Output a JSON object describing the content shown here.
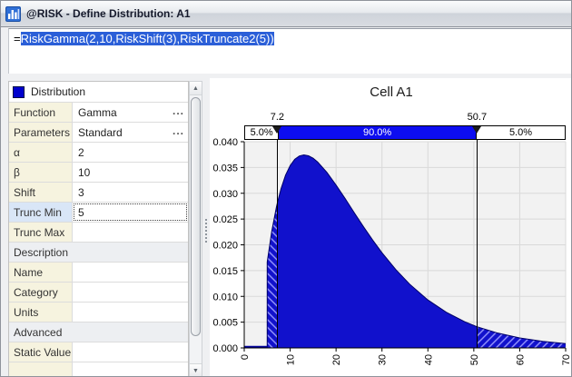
{
  "window": {
    "title": "@RISK - Define Distribution: A1"
  },
  "icons": {
    "window_icon": "bar-chart-icon",
    "distribution_swatch": "blue-color-swatch",
    "ellipsis_button": "ellipsis-icon",
    "scroll_up": "chevron-up-icon",
    "scroll_down": "chevron-down-icon"
  },
  "formula_bar": {
    "prefix": "=",
    "selected_text": "RiskGamma(2,10,RiskShift(3),RiskTruncate2(5))"
  },
  "properties": {
    "header_label": "Distribution",
    "rows": [
      {
        "label": "Function",
        "value": "Gamma",
        "ellipsis": "..."
      },
      {
        "label": "Parameters",
        "value": "Standard",
        "ellipsis": "..."
      },
      {
        "label": "α",
        "value": "2"
      },
      {
        "label": "β",
        "value": "10"
      },
      {
        "label": "Shift",
        "value": "3"
      },
      {
        "label": "Trunc Min",
        "value": "5"
      },
      {
        "label": "Trunc Max",
        "value": ""
      },
      {
        "label": "Description"
      },
      {
        "label": "Name",
        "value": ""
      },
      {
        "label": "Category",
        "value": ""
      },
      {
        "label": "Units",
        "value": ""
      },
      {
        "label": "Advanced"
      },
      {
        "label": "Static Value",
        "value": ""
      }
    ]
  },
  "scrollbar": {
    "up_glyph": "▲",
    "down_glyph": "▼"
  },
  "chart_data": {
    "type": "area",
    "title": "Cell A1",
    "distribution": {
      "function": "Gamma",
      "alpha": 2,
      "beta": 10,
      "shift": 3,
      "trunc_min": 5
    },
    "delimiters": {
      "left_x": 7.2,
      "right_x": 50.7,
      "left_label": "7.2",
      "right_label": "50.7",
      "bands": [
        "5.0%",
        "90.0%",
        "5.0%"
      ],
      "band_probabilities": [
        0.05,
        0.9,
        0.05
      ]
    },
    "xlim": [
      0,
      70
    ],
    "ylim": [
      0,
      0.04
    ],
    "x_ticks": [
      0,
      10,
      20,
      30,
      40,
      50,
      60,
      70
    ],
    "y_tick_labels": [
      "0.000",
      "0.005",
      "0.010",
      "0.015",
      "0.020",
      "0.025",
      "0.030",
      "0.035",
      "0.040"
    ],
    "grid": true,
    "curve_points": [
      [
        5,
        0.01667
      ],
      [
        6,
        0.02262
      ],
      [
        7,
        0.02729
      ],
      [
        7.2,
        0.02809
      ],
      [
        8,
        0.03087
      ],
      [
        9,
        0.03352
      ],
      [
        10,
        0.03538
      ],
      [
        11,
        0.03659
      ],
      [
        12,
        0.03724
      ],
      [
        13,
        0.03744
      ],
      [
        14,
        0.03727
      ],
      [
        15,
        0.03679
      ],
      [
        16,
        0.03606
      ],
      [
        18,
        0.03406
      ],
      [
        20,
        0.03161
      ],
      [
        22,
        0.02893
      ],
      [
        24,
        0.02617
      ],
      [
        26,
        0.02347
      ],
      [
        28,
        0.02089
      ],
      [
        30,
        0.01847
      ],
      [
        33,
        0.0152
      ],
      [
        36,
        0.01239
      ],
      [
        40,
        0.00931
      ],
      [
        44,
        0.00692
      ],
      [
        48,
        0.00509
      ],
      [
        50.7,
        0.00411
      ],
      [
        55,
        0.00292
      ],
      [
        60,
        0.00194
      ],
      [
        65,
        0.00128
      ],
      [
        70,
        0.00084
      ]
    ],
    "colors": {
      "curve_fill": "#1111cc",
      "curve_outline": "#000066",
      "band_blue": "#0d0df0",
      "plot_bg": "#f2f2f2",
      "grid_line": "#d9d9d9"
    }
  }
}
